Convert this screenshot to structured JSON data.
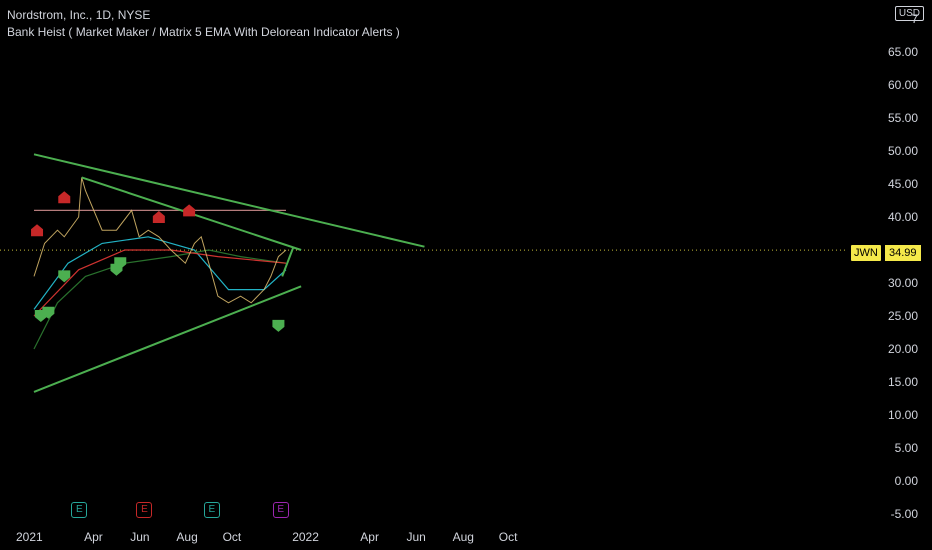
{
  "header": {
    "title": "Nordstrom, Inc., 1D, NYSE",
    "subtitle": "Bank Heist ( Market Maker / Matrix 5 EMA With Delorean Indicator Alerts )",
    "currency": "USD"
  },
  "last_price": {
    "ticker": "JWN",
    "value": "34.99"
  },
  "colors": {
    "green": "#4caf50",
    "red": "#c62828",
    "teal": "#26a69a",
    "purple": "#9c27b0",
    "price_tag": "#f5e94a"
  },
  "earnings_icon_label": "E",
  "chart_data": {
    "type": "line",
    "title": "Nordstrom, Inc., 1D, NYSE",
    "y_axis_labels": [
      "7",
      "65.00",
      "60.00",
      "55.00",
      "50.00",
      "45.00",
      "40.00",
      "35.00",
      "30.00",
      "25.00",
      "20.00",
      "15.00",
      "10.00",
      "5.00",
      "0.00",
      "-5.00"
    ],
    "x_axis_labels": [
      "2021",
      "Apr",
      "Jun",
      "Aug",
      "Oct",
      "2022",
      "Apr",
      "Jun",
      "Aug",
      "Oct"
    ],
    "ylim": [
      -5,
      70
    ],
    "price_series": [
      {
        "date": "2021-01-01",
        "value": 31
      },
      {
        "date": "2021-01-15",
        "value": 36
      },
      {
        "date": "2021-02-01",
        "value": 38
      },
      {
        "date": "2021-02-10",
        "value": 37
      },
      {
        "date": "2021-03-01",
        "value": 40
      },
      {
        "date": "2021-03-05",
        "value": 46
      },
      {
        "date": "2021-03-10",
        "value": 44
      },
      {
        "date": "2021-04-01",
        "value": 38
      },
      {
        "date": "2021-04-20",
        "value": 38
      },
      {
        "date": "2021-05-10",
        "value": 41
      },
      {
        "date": "2021-05-20",
        "value": 37
      },
      {
        "date": "2021-06-01",
        "value": 38
      },
      {
        "date": "2021-06-15",
        "value": 37
      },
      {
        "date": "2021-07-01",
        "value": 35
      },
      {
        "date": "2021-07-20",
        "value": 33
      },
      {
        "date": "2021-08-01",
        "value": 36
      },
      {
        "date": "2021-08-10",
        "value": 37
      },
      {
        "date": "2021-08-20",
        "value": 33
      },
      {
        "date": "2021-09-01",
        "value": 28
      },
      {
        "date": "2021-09-15",
        "value": 27
      },
      {
        "date": "2021-10-01",
        "value": 28
      },
      {
        "date": "2021-10-15",
        "value": 27
      },
      {
        "date": "2021-11-01",
        "value": 29
      },
      {
        "date": "2021-11-10",
        "value": 31
      },
      {
        "date": "2021-11-20",
        "value": 34
      },
      {
        "date": "2021-11-30",
        "value": 35
      }
    ],
    "series": [
      {
        "values": [
          {
            "date": "2021-01-01",
            "value": 26
          },
          {
            "date": "2021-02-15",
            "value": 33
          },
          {
            "date": "2021-04-01",
            "value": 36
          },
          {
            "date": "2021-06-01",
            "value": 37
          },
          {
            "date": "2021-08-01",
            "value": 35
          },
          {
            "date": "2021-09-15",
            "value": 29
          },
          {
            "date": "2021-11-01",
            "value": 29
          },
          {
            "date": "2021-11-30",
            "value": 32
          }
        ]
      },
      {
        "values": [
          {
            "date": "2021-01-01",
            "value": 20
          },
          {
            "date": "2021-02-01",
            "value": 27
          },
          {
            "date": "2021-03-10",
            "value": 31
          },
          {
            "date": "2021-05-01",
            "value": 33
          },
          {
            "date": "2021-07-01",
            "value": 34
          },
          {
            "date": "2021-08-20",
            "value": 35
          },
          {
            "date": "2021-10-01",
            "value": 34
          },
          {
            "date": "2021-11-30",
            "value": 33
          }
        ]
      },
      {
        "values": [
          {
            "date": "2021-01-01",
            "value": 25
          },
          {
            "date": "2021-03-01",
            "value": 32
          },
          {
            "date": "2021-05-01",
            "value": 35
          },
          {
            "date": "2021-07-01",
            "value": 35
          },
          {
            "date": "2021-09-01",
            "value": 34
          },
          {
            "date": "2021-11-30",
            "value": 33
          }
        ]
      },
      {
        "values": [
          {
            "date": "2021-01-01",
            "value": 41
          },
          {
            "date": "2021-11-30",
            "value": 41
          }
        ]
      }
    ],
    "trendlines": [
      {
        "points": [
          {
            "date": "2021-01-01",
            "value": 49.5
          },
          {
            "date": "2022-06-01",
            "value": 35.5
          }
        ]
      },
      {
        "points": [
          {
            "date": "2021-03-05",
            "value": 46
          },
          {
            "date": "2021-12-20",
            "value": 35
          }
        ]
      },
      {
        "points": [
          {
            "date": "2021-01-01",
            "value": 13.5
          },
          {
            "date": "2021-12-20",
            "value": 29.5
          }
        ]
      },
      {
        "points": [
          {
            "date": "2021-11-25",
            "value": 31
          },
          {
            "date": "2021-12-10",
            "value": 35.5
          }
        ]
      }
    ],
    "markers": [
      {
        "kind": "up",
        "color": "red",
        "date": "2021-01-05",
        "value": 38
      },
      {
        "kind": "up",
        "color": "red",
        "date": "2021-02-10",
        "value": 43
      },
      {
        "kind": "up",
        "color": "red",
        "date": "2021-06-15",
        "value": 40
      },
      {
        "kind": "up",
        "color": "red",
        "date": "2021-07-25",
        "value": 41
      },
      {
        "kind": "down",
        "color": "green",
        "date": "2021-01-10",
        "value": 25
      },
      {
        "kind": "down",
        "color": "green",
        "date": "2021-01-20",
        "value": 25.5
      },
      {
        "kind": "down",
        "color": "green",
        "date": "2021-02-10",
        "value": 31
      },
      {
        "kind": "down",
        "color": "green",
        "date": "2021-04-20",
        "value": 32
      },
      {
        "kind": "down",
        "color": "green",
        "date": "2021-04-25",
        "value": 33
      },
      {
        "kind": "down",
        "color": "green",
        "date": "2021-11-20",
        "value": 23.5
      }
    ],
    "earnings": [
      {
        "date": "2021-03-02",
        "color": "teal"
      },
      {
        "date": "2021-05-27",
        "color": "red"
      },
      {
        "date": "2021-08-24",
        "color": "teal"
      },
      {
        "date": "2021-11-23",
        "color": "purple"
      }
    ]
  }
}
